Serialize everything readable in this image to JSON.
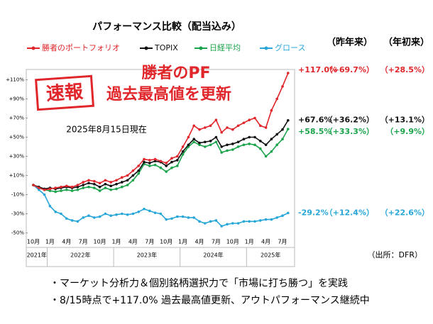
{
  "chart_data": {
    "type": "line",
    "title": "パフォーマンス比較（配当込み）",
    "headline": [
      "勝者のPF",
      "過去最高値を更新"
    ],
    "stamp": "速報",
    "date_note": "2025年8月15日現在",
    "column_headers": [
      "（昨年来）",
      "（年初来）"
    ],
    "source": "（出所：DFR）",
    "bullets": [
      "・マーケット分析力＆個別銘柄選択力で「市場に打ち勝つ」を実践",
      "・8/15時点で+117.0% 過去最高値更新、アウトパフォーマンス継続中"
    ],
    "categories": [
      "10月",
      null,
      null,
      "1月",
      null,
      null,
      "4月",
      null,
      null,
      "7月",
      null,
      null,
      "10月",
      null,
      null,
      "1月",
      null,
      null,
      "4月",
      null,
      null,
      "7月",
      null,
      null,
      "10月",
      null,
      null,
      "1月",
      null,
      null,
      "4月",
      null,
      null,
      "7月",
      null,
      null,
      "10月",
      null,
      null,
      "1月",
      null,
      null,
      "4月",
      null,
      null,
      "7月",
      null
    ],
    "years": [
      "2021年",
      "2022年",
      "2023年",
      "2024年",
      "2025年"
    ],
    "ylim": [
      -50,
      120
    ],
    "yticks": [
      {
        "value": -50,
        "label": "-50%"
      },
      {
        "value": -30,
        "label": "-30%"
      },
      {
        "value": -10,
        "label": "-10%"
      },
      {
        "value": 10,
        "label": "+10%"
      },
      {
        "value": 30,
        "label": "+30%"
      },
      {
        "value": 50,
        "label": "+50%"
      },
      {
        "value": 70,
        "label": "+70%"
      },
      {
        "value": 90,
        "label": "+90%"
      },
      {
        "value": 110,
        "label": "+110%"
      }
    ],
    "grid": false,
    "series": [
      {
        "name": "勝者のポートフォリオ",
        "color": "#e0262b",
        "end_label": "+117.0%",
        "since_last_year": "（+69.7%）",
        "ytd": "（+28.5%）",
        "values": [
          0,
          -3,
          -5,
          -4,
          -3,
          -2,
          -1,
          -2,
          0,
          3,
          5,
          4,
          2,
          5,
          3,
          5,
          8,
          10,
          15,
          20,
          27,
          26,
          27,
          25,
          23,
          28,
          30,
          40,
          50,
          62,
          58,
          60,
          62,
          68,
          55,
          60,
          58,
          62,
          65,
          68,
          70,
          62,
          60,
          78,
          90,
          103,
          117.0
        ]
      },
      {
        "name": "TOPIX",
        "color": "#111111",
        "end_label": "+67.6%",
        "since_last_year": "（+36.2%）",
        "ytd": "（+13.1%）",
        "values": [
          0,
          -2,
          -4,
          -3,
          -4,
          -3,
          -2,
          -3,
          -2,
          0,
          2,
          1,
          -2,
          1,
          -1,
          1,
          3,
          5,
          10,
          15,
          24,
          23,
          25,
          24,
          20,
          24,
          26,
          35,
          42,
          48,
          44,
          45,
          46,
          50,
          40,
          42,
          43,
          45,
          48,
          50,
          50,
          46,
          42,
          48,
          53,
          58,
          67.6
        ]
      },
      {
        "name": "日経平均",
        "color": "#1aa34a",
        "end_label": "+58.5%",
        "since_last_year": "（+33.3%）",
        "ytd": "（+9.9%）",
        "values": [
          0,
          -3,
          -5,
          -6,
          -7,
          -6,
          -5,
          -6,
          -5,
          -3,
          -2,
          -3,
          -6,
          -3,
          -5,
          -4,
          -2,
          0,
          5,
          12,
          22,
          20,
          21,
          18,
          14,
          18,
          20,
          32,
          40,
          45,
          42,
          40,
          42,
          45,
          34,
          36,
          37,
          40,
          42,
          43,
          42,
          38,
          30,
          35,
          42,
          48,
          58.5
        ]
      },
      {
        "name": "グロース",
        "color": "#27a6d8",
        "end_label": "-29.2%",
        "since_last_year": "（+12.4%）",
        "ytd": "（+22.6%）",
        "values": [
          0,
          -5,
          -10,
          -22,
          -28,
          -30,
          -35,
          -37,
          -38,
          -34,
          -32,
          -34,
          -33,
          -30,
          -32,
          -31,
          -30,
          -31,
          -30,
          -28,
          -25,
          -27,
          -29,
          -30,
          -36,
          -35,
          -33,
          -33,
          -34,
          -34,
          -38,
          -40,
          -38,
          -37,
          -43,
          -41,
          -40,
          -40,
          -38,
          -38,
          -38,
          -37,
          -36,
          -36,
          -34,
          -32,
          -29.2
        ]
      }
    ]
  }
}
